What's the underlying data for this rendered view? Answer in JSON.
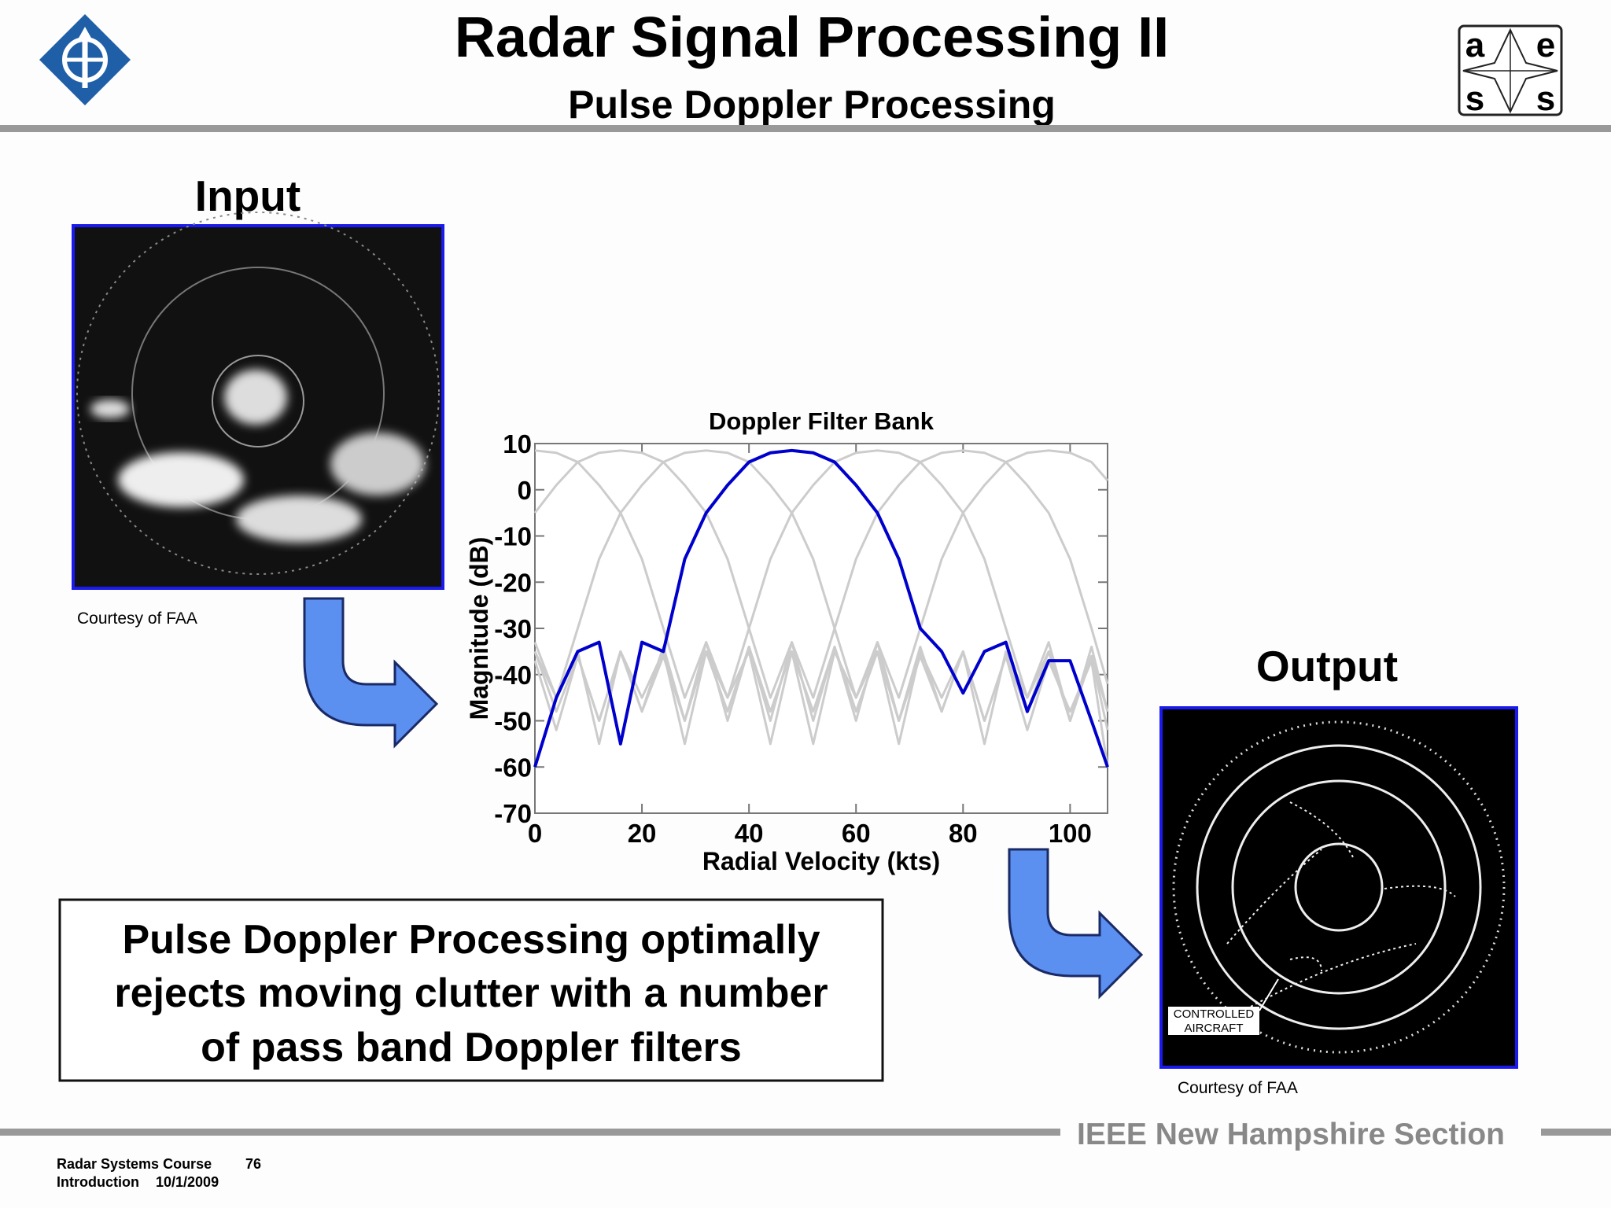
{
  "header": {
    "title": "Radar Signal Processing II",
    "subtitle": "Pulse Doppler Processing"
  },
  "logo": {
    "letters": [
      "a",
      "e",
      "s",
      "s"
    ]
  },
  "input": {
    "label": "Input",
    "credit": "Courtesy of FAA"
  },
  "output": {
    "label": "Output",
    "credit": "Courtesy of FAA",
    "annotation": [
      "CONTROLLED",
      "AIRCRAFT"
    ]
  },
  "textbox": {
    "lines": [
      "Pulse Doppler Processing optimally",
      "rejects moving clutter with a number",
      "of pass band Doppler filters"
    ]
  },
  "footer": {
    "section": "IEEE New Hampshire Section",
    "course": "Radar Systems Course",
    "page": "76",
    "topic": "Introduction",
    "date": "10/1/2009"
  },
  "chart_data": {
    "type": "line",
    "title": "Doppler Filter Bank",
    "x_label": "Radial Velocity (kts)",
    "y_label": "Magnitude (dB)",
    "x": [
      0,
      4,
      8,
      12,
      16,
      20,
      24,
      28,
      32,
      36,
      40,
      44,
      48,
      52,
      56,
      60,
      64,
      68,
      72,
      76,
      80,
      84,
      88,
      92,
      96,
      100,
      104,
      107
    ],
    "series": [
      {
        "color": "#cccccc",
        "values": [
          8.5,
          8,
          6,
          1,
          -5,
          -15,
          -30,
          -45,
          -33,
          -50,
          -34,
          -48,
          -35,
          -55,
          -35,
          -45,
          -35,
          -50,
          -36,
          -48,
          -35,
          -50,
          -36,
          -52,
          -37,
          -48,
          -37,
          -60
        ]
      },
      {
        "color": "#cccccc",
        "values": [
          -5,
          1,
          6,
          8,
          8.5,
          8,
          6,
          1,
          -5,
          -15,
          -30,
          -45,
          -33,
          -50,
          -34,
          -48,
          -35,
          -55,
          -35,
          -45,
          -35,
          -50,
          -36,
          -48,
          -35,
          -50,
          -36,
          -52
        ]
      },
      {
        "color": "#cccccc",
        "values": [
          -33,
          -45,
          -30,
          -15,
          -5,
          1,
          6,
          8,
          8.5,
          8,
          6,
          1,
          -5,
          -15,
          -30,
          -45,
          -33,
          -50,
          -34,
          -48,
          -35,
          -55,
          -35,
          -45,
          -35,
          -50,
          -36,
          -48
        ]
      },
      {
        "color": "#cccccc",
        "values": [
          -35,
          -45,
          -35,
          -55,
          -35,
          -48,
          -34,
          -50,
          -33,
          -45,
          -30,
          -15,
          -5,
          1,
          6,
          8,
          8.5,
          8,
          6,
          1,
          -5,
          -15,
          -30,
          -45,
          -33,
          -50,
          -34,
          -48
        ]
      },
      {
        "color": "#cccccc",
        "values": [
          -35,
          -48,
          -36,
          -50,
          -35,
          -45,
          -35,
          -55,
          -35,
          -48,
          -34,
          -50,
          -33,
          -45,
          -30,
          -15,
          -5,
          1,
          6,
          8,
          8.5,
          8,
          6,
          1,
          -5,
          -15,
          -30,
          -42
        ]
      },
      {
        "color": "#cccccc",
        "values": [
          -37,
          -52,
          -36,
          -50,
          -35,
          -48,
          -36,
          -50,
          -35,
          -45,
          -35,
          -55,
          -35,
          -48,
          -34,
          -50,
          -33,
          -45,
          -30,
          -15,
          -5,
          1,
          6,
          8,
          8.5,
          8,
          6,
          2
        ]
      },
      {
        "color": "#0000cc",
        "values": [
          -60,
          -45,
          -35,
          -33,
          -55,
          -33,
          -35,
          -15,
          -5,
          1,
          6,
          8,
          8.5,
          8,
          6,
          1,
          -5,
          -15,
          -30,
          -35,
          -44,
          -35,
          -33,
          -48,
          -37,
          -37,
          -50,
          -60
        ]
      }
    ],
    "xlim": [
      0,
      107
    ],
    "xticks": [
      0,
      20,
      40,
      60,
      80,
      100
    ],
    "ylim": [
      -70,
      10
    ],
    "yticks": [
      -70,
      -60,
      -50,
      -40,
      -30,
      -20,
      -10,
      0,
      10
    ]
  }
}
